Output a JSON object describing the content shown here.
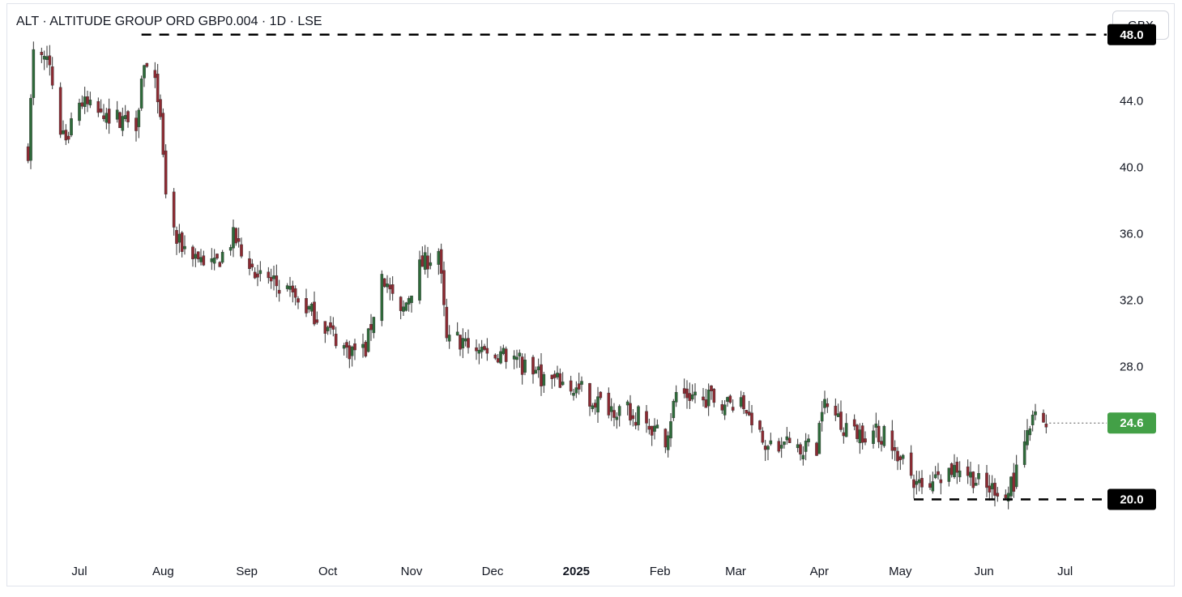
{
  "header": {
    "title": "ALT · ALTITUDE GROUP ORD GBP0.004 · 1D · LSE",
    "currency_button": "GBX"
  },
  "colors": {
    "up": "#2e6b3a",
    "down": "#8c2a32",
    "wick": "#333333",
    "last_price_badge": "#43a047",
    "level_badge": "#000000"
  },
  "chart_data": {
    "type": "candlestick",
    "title": "ALT · ALTITUDE GROUP ORD GBP0.004 · 1D · LSE",
    "currency": "GBX",
    "y_ticks": [
      "44.0",
      "40.0",
      "36.0",
      "32.0",
      "28.0"
    ],
    "ylim": [
      16.9,
      49.6
    ],
    "x_ticks": [
      {
        "label": "Jul",
        "date": "2024-07-01",
        "bold": false
      },
      {
        "label": "Aug",
        "date": "2024-08-01",
        "bold": false
      },
      {
        "label": "Sep",
        "date": "2024-09-01",
        "bold": false
      },
      {
        "label": "Oct",
        "date": "2024-10-01",
        "bold": false
      },
      {
        "label": "Nov",
        "date": "2024-11-01",
        "bold": false
      },
      {
        "label": "Dec",
        "date": "2024-12-01",
        "bold": false
      },
      {
        "label": "2025",
        "date": "2025-01-01",
        "bold": true
      },
      {
        "label": "Feb",
        "date": "2025-02-01",
        "bold": false
      },
      {
        "label": "Mar",
        "date": "2025-03-01",
        "bold": false
      },
      {
        "label": "Apr",
        "date": "2025-04-01",
        "bold": false
      },
      {
        "label": "May",
        "date": "2025-05-01",
        "bold": false
      },
      {
        "label": "Jun",
        "date": "2025-06-01",
        "bold": false
      },
      {
        "label": "Jul",
        "date": "2025-07-01",
        "bold": false
      }
    ],
    "levels": [
      {
        "value": 48.0,
        "label": "48.0",
        "from_date": "2024-07-24"
      },
      {
        "value": 20.0,
        "label": "20.0",
        "from_date": "2025-05-06"
      }
    ],
    "last_price": {
      "value": 24.6,
      "label": "24.6"
    },
    "anchors": [
      [
        "2024-06-12",
        41.0
      ],
      [
        "2024-06-14",
        46.8
      ],
      [
        "2024-06-20",
        46.0
      ],
      [
        "2024-06-25",
        41.5
      ],
      [
        "2024-07-01",
        44.0
      ],
      [
        "2024-07-08",
        43.2
      ],
      [
        "2024-07-22",
        42.8
      ],
      [
        "2024-07-25",
        46.5
      ],
      [
        "2024-07-30",
        44.5
      ],
      [
        "2024-08-02",
        38.5
      ],
      [
        "2024-08-06",
        35.5
      ],
      [
        "2024-08-20",
        34.0
      ],
      [
        "2024-08-27",
        35.8
      ],
      [
        "2024-09-05",
        33.7
      ],
      [
        "2024-09-16",
        32.5
      ],
      [
        "2024-09-27",
        31.0
      ],
      [
        "2024-10-08",
        29.0
      ],
      [
        "2024-10-15",
        29.0
      ],
      [
        "2024-10-21",
        33.5
      ],
      [
        "2024-10-28",
        31.0
      ],
      [
        "2024-11-04",
        34.0
      ],
      [
        "2024-11-11",
        35.0
      ],
      [
        "2024-11-14",
        29.5
      ],
      [
        "2024-11-25",
        29.2
      ],
      [
        "2024-12-09",
        28.5
      ],
      [
        "2024-12-16",
        27.5
      ],
      [
        "2024-12-27",
        27.0
      ],
      [
        "2025-01-10",
        25.8
      ],
      [
        "2025-01-24",
        25.0
      ],
      [
        "2025-02-03",
        23.6
      ],
      [
        "2025-02-07",
        26.4
      ],
      [
        "2025-02-21",
        26.0
      ],
      [
        "2025-03-05",
        25.5
      ],
      [
        "2025-03-14",
        23.0
      ],
      [
        "2025-03-31",
        23.2
      ],
      [
        "2025-04-02",
        25.8
      ],
      [
        "2025-04-14",
        24.0
      ],
      [
        "2025-04-25",
        24.0
      ],
      [
        "2025-05-05",
        21.5
      ],
      [
        "2025-05-08",
        20.6
      ],
      [
        "2025-05-16",
        21.6
      ],
      [
        "2025-05-23",
        22.0
      ],
      [
        "2025-06-02",
        20.6
      ],
      [
        "2025-06-12",
        21.0
      ],
      [
        "2025-06-16",
        23.2
      ],
      [
        "2025-06-19",
        24.8
      ],
      [
        "2025-06-24",
        24.6
      ]
    ]
  }
}
